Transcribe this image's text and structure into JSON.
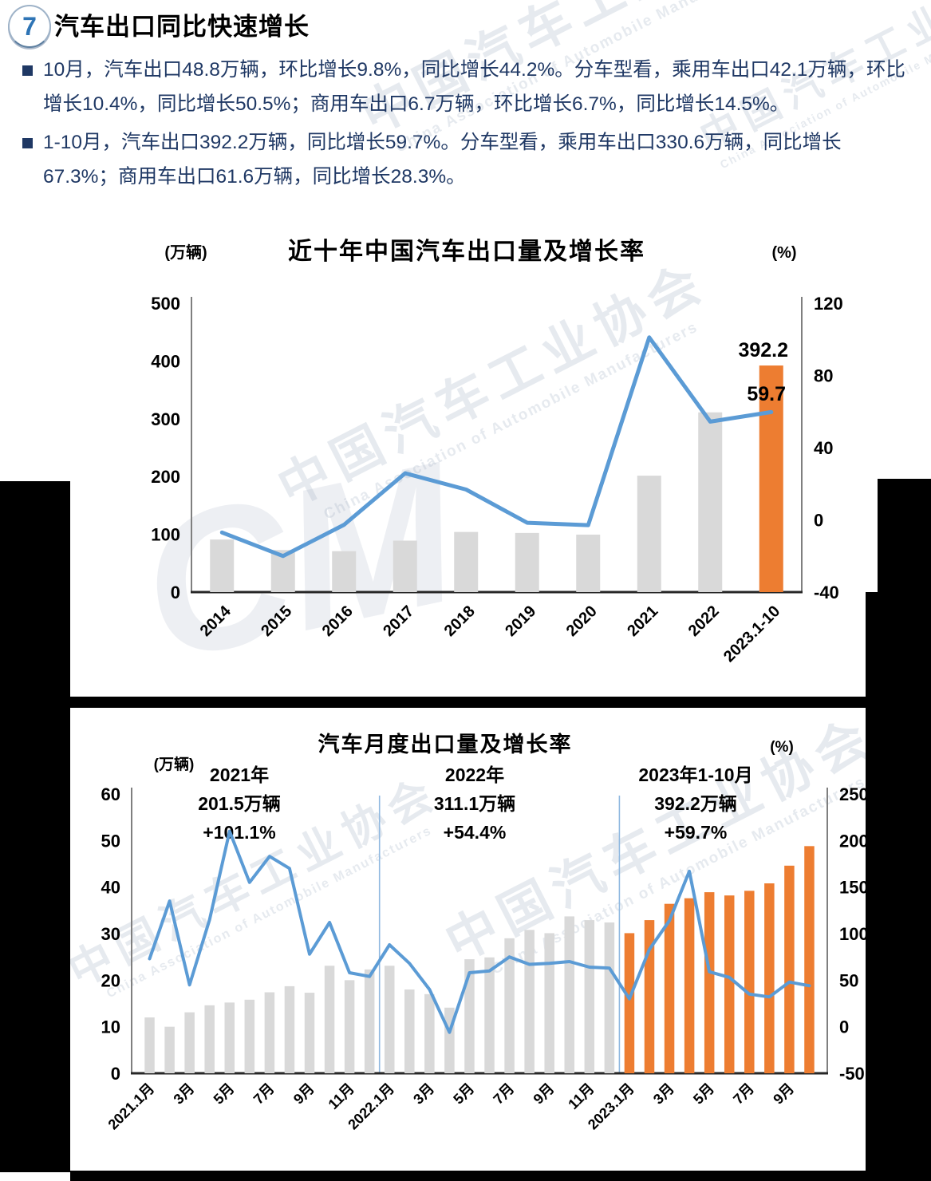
{
  "page": {
    "badge": "7",
    "title": "汽车出口同比快速增长",
    "bullets": [
      "10月，汽车出口48.8万辆，环比增长9.8%，同比增长44.2%。分车型看，乘用车出口42.1万辆，环比增长10.4%，同比增长50.5%；商用车出口6.7万辆，环比增长6.7%，同比增长14.5%。",
      "1-10月，汽车出口392.2万辆，同比增长59.7%。分车型看，乘用车出口330.6万辆，同比增长67.3%；商用车出口61.6万辆，同比增长28.3%。"
    ]
  },
  "watermark": {
    "cn": "中国汽车工业协会",
    "en": "China Association of Automobile Manufacturers",
    "logo": "CM"
  },
  "colors": {
    "bar_gray": "#D9D9D9",
    "bar_orange": "#ED7D31",
    "line_blue": "#5B9BD5",
    "axis_gray": "#7f7f7f",
    "baseline_dark": "#262626",
    "separator_blue": "#8FB8E0",
    "text_navy": "#1f3864"
  },
  "chart_data": [
    {
      "type": "bar+line",
      "title": "近十年中国汽车出口量及增长率",
      "unit_left": "(万辆)",
      "unit_right": "(%)",
      "categories": [
        "2014",
        "2015",
        "2016",
        "2017",
        "2018",
        "2019",
        "2020",
        "2021",
        "2022",
        "2023.1-10"
      ],
      "bars_name": "出口量(万辆)",
      "bar_values": [
        91,
        72.8,
        70.8,
        89.1,
        104.1,
        102.4,
        99.5,
        201.5,
        311.1,
        392.2
      ],
      "line_name": "增长率(%)",
      "line_values": [
        -7,
        -20,
        -2.7,
        25.8,
        16.8,
        -1.6,
        -2.9,
        101.1,
        54.4,
        59.7
      ],
      "highlight_start_index": 9,
      "left_range": [
        0,
        500
      ],
      "right_range": [
        -40,
        120
      ],
      "left_ticks": [
        0,
        100,
        200,
        300,
        400,
        500
      ],
      "right_ticks": [
        -40,
        0,
        40,
        80,
        120
      ],
      "annotations": [
        "392.2",
        "59.7"
      ],
      "grid": false,
      "legend": "none"
    },
    {
      "type": "bar+line",
      "title": "汽车月度出口量及增长率",
      "unit_left": "(万辆)",
      "unit_right": "(%)",
      "categories": [
        "2021.1",
        "2021.2",
        "2021.3",
        "2021.4",
        "2021.5",
        "2021.6",
        "2021.7",
        "2021.8",
        "2021.9",
        "2021.10",
        "2021.11",
        "2021.12",
        "2022.1",
        "2022.2",
        "2022.3",
        "2022.4",
        "2022.5",
        "2022.6",
        "2022.7",
        "2022.8",
        "2022.9",
        "2022.10",
        "2022.11",
        "2022.12",
        "2023.1",
        "2023.2",
        "2023.3",
        "2023.4",
        "2023.5",
        "2023.6",
        "2023.7",
        "2023.8",
        "2023.9",
        "2023.10"
      ],
      "bars_name": "月度出口量(万辆)",
      "bar_values": [
        12.0,
        10.0,
        13.1,
        14.6,
        15.2,
        15.8,
        17.4,
        18.7,
        17.3,
        23.1,
        20.0,
        22.3,
        23.1,
        18.0,
        17.0,
        14.1,
        24.5,
        24.9,
        29.0,
        30.8,
        30.1,
        33.7,
        32.9,
        32.4,
        30.1,
        32.9,
        36.4,
        37.6,
        38.9,
        38.2,
        39.2,
        40.8,
        44.6,
        48.8
      ],
      "line_name": "同比增长率(%)",
      "line_values": [
        73,
        135,
        45,
        115,
        210,
        155,
        183,
        170,
        78,
        112,
        58,
        54,
        88,
        68,
        40,
        -6,
        58,
        60,
        75,
        67,
        68,
        70,
        64,
        63,
        30,
        83,
        114,
        167,
        59,
        53,
        35,
        32,
        48,
        44
      ],
      "highlight_start_index": 24,
      "left_range": [
        0,
        60
      ],
      "right_range": [
        -50,
        250
      ],
      "left_ticks": [
        0,
        10,
        20,
        30,
        40,
        50,
        60
      ],
      "right_ticks": [
        -50,
        0,
        50,
        100,
        150,
        200,
        250
      ],
      "x_tick_indices": [
        0,
        2,
        4,
        6,
        8,
        10,
        12,
        14,
        16,
        18,
        20,
        22,
        24,
        26,
        28,
        30,
        32
      ],
      "x_tick_labels": [
        "2021.1月",
        "3月",
        "5月",
        "7月",
        "9月",
        "11月",
        "2022.1月",
        "3月",
        "5月",
        "7月",
        "9月",
        "11月",
        "2023.1月",
        "3月",
        "5月",
        "7月",
        "9月"
      ],
      "separator_indices": [
        12,
        24
      ],
      "annotation_blocks": [
        {
          "lines": [
            "2021年",
            "201.5万辆",
            "+101.1%"
          ]
        },
        {
          "lines": [
            "2022年",
            "311.1万辆",
            "+54.4%"
          ]
        },
        {
          "lines": [
            "2023年1-10月",
            "392.2万辆",
            "+59.7%"
          ]
        }
      ],
      "grid": false,
      "legend": "none"
    }
  ]
}
